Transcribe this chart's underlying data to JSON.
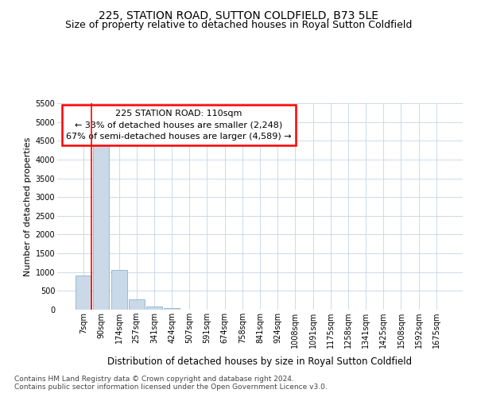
{
  "title": "225, STATION ROAD, SUTTON COLDFIELD, B73 5LE",
  "subtitle": "Size of property relative to detached houses in Royal Sutton Coldfield",
  "xlabel": "Distribution of detached houses by size in Royal Sutton Coldfield",
  "ylabel": "Number of detached properties",
  "footnote1": "Contains HM Land Registry data © Crown copyright and database right 2024.",
  "footnote2": "Contains public sector information licensed under the Open Government Licence v3.0.",
  "annotation_title": "225 STATION ROAD: 110sqm",
  "annotation_line1": "← 33% of detached houses are smaller (2,248)",
  "annotation_line2": "67% of semi-detached houses are larger (4,589) →",
  "bar_labels": [
    "7sqm",
    "90sqm",
    "174sqm",
    "257sqm",
    "341sqm",
    "424sqm",
    "507sqm",
    "591sqm",
    "674sqm",
    "758sqm",
    "841sqm",
    "924sqm",
    "1008sqm",
    "1091sqm",
    "1175sqm",
    "1258sqm",
    "1341sqm",
    "1425sqm",
    "1508sqm",
    "1592sqm",
    "1675sqm"
  ],
  "bar_values": [
    900,
    4580,
    1060,
    280,
    75,
    40,
    5,
    0,
    10,
    0,
    0,
    0,
    0,
    0,
    0,
    0,
    0,
    0,
    0,
    0,
    0
  ],
  "bar_color": "#c9d9e8",
  "bar_edge_color": "#7aaac8",
  "redline_index": 0,
  "ylim_max": 5500,
  "ytick_step": 500,
  "grid_color": "#c5d5e5",
  "bg_color": "#ffffff",
  "title_fontsize": 10,
  "subtitle_fontsize": 9,
  "ylabel_fontsize": 8,
  "xlabel_fontsize": 8.5,
  "tick_fontsize": 7,
  "annot_fontsize": 8,
  "footnote_fontsize": 6.5
}
